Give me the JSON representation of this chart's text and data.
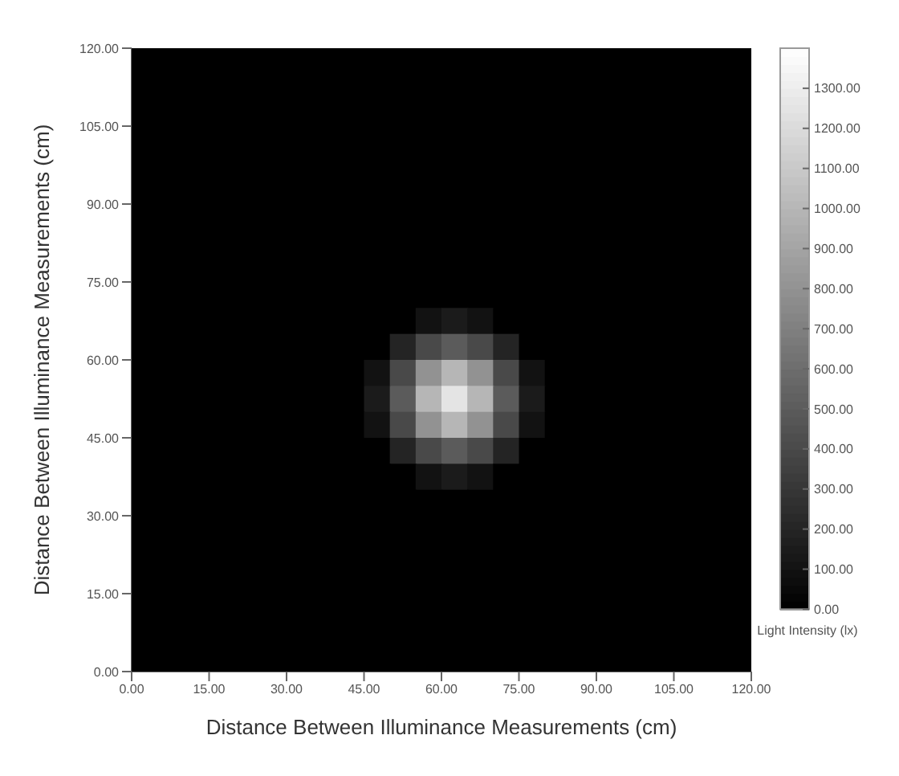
{
  "chart_data": {
    "type": "heatmap",
    "xlabel": "Distance Between Illuminance Measurements (cm)",
    "ylabel": "Distance Between Illuminance Measurements (cm)",
    "clabel": "Light Intensity (lx)",
    "xlim": [
      0,
      120
    ],
    "ylim": [
      0,
      120
    ],
    "xticks": [
      {
        "value": 0,
        "label": "0.00"
      },
      {
        "value": 15,
        "label": "15.00"
      },
      {
        "value": 30,
        "label": "30.00"
      },
      {
        "value": 45,
        "label": "45.00"
      },
      {
        "value": 60,
        "label": "60.00"
      },
      {
        "value": 75,
        "label": "75.00"
      },
      {
        "value": 90,
        "label": "90.00"
      },
      {
        "value": 105,
        "label": "105.00"
      },
      {
        "value": 120,
        "label": "120.00"
      }
    ],
    "yticks": [
      {
        "value": 0,
        "label": "0.00"
      },
      {
        "value": 15,
        "label": "15.00"
      },
      {
        "value": 30,
        "label": "30.00"
      },
      {
        "value": 45,
        "label": "45.00"
      },
      {
        "value": 60,
        "label": "60.00"
      },
      {
        "value": 75,
        "label": "75.00"
      },
      {
        "value": 90,
        "label": "90.00"
      },
      {
        "value": 105,
        "label": "105.00"
      },
      {
        "value": 120,
        "label": "120.00"
      }
    ],
    "clim": [
      0,
      1400
    ],
    "cticks": [
      {
        "value": 0,
        "label": "0.00"
      },
      {
        "value": 100,
        "label": "100.00"
      },
      {
        "value": 200,
        "label": "200.00"
      },
      {
        "value": 300,
        "label": "300.00"
      },
      {
        "value": 400,
        "label": "400.00"
      },
      {
        "value": 500,
        "label": "500.00"
      },
      {
        "value": 600,
        "label": "600.00"
      },
      {
        "value": 700,
        "label": "700.00"
      },
      {
        "value": 800,
        "label": "800.00"
      },
      {
        "value": 900,
        "label": "900.00"
      },
      {
        "value": 1000,
        "label": "1000.00"
      },
      {
        "value": 1100,
        "label": "1100.00"
      },
      {
        "value": 1200,
        "label": "1200.00"
      },
      {
        "value": 1300,
        "label": "1300.00"
      }
    ],
    "cells": [
      [
        0,
        0,
        0,
        0,
        0,
        0,
        0,
        0,
        0,
        0,
        0,
        0,
        0,
        0,
        0,
        0,
        0,
        0,
        0,
        0,
        0,
        0,
        0,
        0
      ],
      [
        0,
        0,
        0,
        0,
        0,
        0,
        0,
        0,
        0,
        0,
        0,
        0,
        0,
        0,
        0,
        0,
        0,
        0,
        0,
        0,
        0,
        0,
        0,
        0
      ],
      [
        0,
        0,
        0,
        0,
        0,
        0,
        0,
        0,
        0,
        0,
        0,
        0,
        0,
        0,
        0,
        0,
        0,
        0,
        0,
        0,
        0,
        0,
        0,
        0
      ],
      [
        0,
        0,
        0,
        0,
        0,
        0,
        0,
        0,
        0,
        0,
        0,
        0,
        0,
        0,
        0,
        0,
        0,
        0,
        0,
        0,
        0,
        0,
        0,
        0
      ],
      [
        0,
        0,
        0,
        0,
        0,
        0,
        0,
        0,
        0,
        0,
        0,
        0,
        0,
        0,
        0,
        0,
        0,
        0,
        0,
        0,
        0,
        0,
        0,
        0
      ],
      [
        0,
        0,
        0,
        0,
        0,
        0,
        0,
        0,
        0,
        0,
        0,
        0,
        0,
        0,
        0,
        0,
        0,
        0,
        0,
        0,
        0,
        0,
        0,
        0
      ],
      [
        0,
        0,
        0,
        0,
        0,
        0,
        0,
        0,
        0,
        0,
        0,
        0,
        0,
        0,
        0,
        0,
        0,
        0,
        0,
        0,
        0,
        0,
        0,
        0
      ],
      [
        0,
        0,
        0,
        0,
        0,
        0,
        0,
        0,
        0,
        0,
        0,
        0,
        0,
        0,
        0,
        0,
        0,
        0,
        0,
        0,
        0,
        0,
        0,
        0
      ],
      [
        0,
        0,
        0,
        0,
        0,
        0,
        0,
        0,
        0,
        0,
        0,
        0,
        0,
        0,
        0,
        0,
        0,
        0,
        0,
        0,
        0,
        0,
        0,
        0
      ],
      [
        0,
        0,
        0,
        0,
        0,
        0,
        0,
        0,
        0,
        0,
        0,
        0,
        0,
        0,
        0,
        0,
        0,
        0,
        0,
        0,
        0,
        0,
        0,
        0
      ],
      [
        0,
        0,
        0,
        0,
        0,
        0,
        0,
        0,
        0,
        0,
        0,
        100,
        150,
        100,
        0,
        0,
        0,
        0,
        0,
        0,
        0,
        0,
        0,
        0
      ],
      [
        0,
        0,
        0,
        0,
        0,
        0,
        0,
        0,
        0,
        0,
        200,
        400,
        500,
        400,
        200,
        0,
        0,
        0,
        0,
        0,
        0,
        0,
        0,
        0
      ],
      [
        0,
        0,
        0,
        0,
        0,
        0,
        0,
        0,
        0,
        100,
        400,
        800,
        1000,
        800,
        400,
        100,
        0,
        0,
        0,
        0,
        0,
        0,
        0,
        0
      ],
      [
        0,
        0,
        0,
        0,
        0,
        0,
        0,
        0,
        0,
        150,
        500,
        1000,
        1250,
        1000,
        500,
        150,
        0,
        0,
        0,
        0,
        0,
        0,
        0,
        0
      ],
      [
        0,
        0,
        0,
        0,
        0,
        0,
        0,
        0,
        0,
        100,
        400,
        800,
        1000,
        800,
        400,
        100,
        0,
        0,
        0,
        0,
        0,
        0,
        0,
        0
      ],
      [
        0,
        0,
        0,
        0,
        0,
        0,
        0,
        0,
        0,
        0,
        200,
        400,
        500,
        400,
        200,
        0,
        0,
        0,
        0,
        0,
        0,
        0,
        0,
        0
      ],
      [
        0,
        0,
        0,
        0,
        0,
        0,
        0,
        0,
        0,
        0,
        0,
        100,
        150,
        100,
        0,
        0,
        0,
        0,
        0,
        0,
        0,
        0,
        0,
        0
      ],
      [
        0,
        0,
        0,
        0,
        0,
        0,
        0,
        0,
        0,
        0,
        0,
        0,
        0,
        0,
        0,
        0,
        0,
        0,
        0,
        0,
        0,
        0,
        0,
        0
      ],
      [
        0,
        0,
        0,
        0,
        0,
        0,
        0,
        0,
        0,
        0,
        0,
        0,
        0,
        0,
        0,
        0,
        0,
        0,
        0,
        0,
        0,
        0,
        0,
        0
      ],
      [
        0,
        0,
        0,
        0,
        0,
        0,
        0,
        0,
        0,
        0,
        0,
        0,
        0,
        0,
        0,
        0,
        0,
        0,
        0,
        0,
        0,
        0,
        0,
        0
      ],
      [
        0,
        0,
        0,
        0,
        0,
        0,
        0,
        0,
        0,
        0,
        0,
        0,
        0,
        0,
        0,
        0,
        0,
        0,
        0,
        0,
        0,
        0,
        0,
        0
      ],
      [
        0,
        0,
        0,
        0,
        0,
        0,
        0,
        0,
        0,
        0,
        0,
        0,
        0,
        0,
        0,
        0,
        0,
        0,
        0,
        0,
        0,
        0,
        0,
        0
      ],
      [
        0,
        0,
        0,
        0,
        0,
        0,
        0,
        0,
        0,
        0,
        0,
        0,
        0,
        0,
        0,
        0,
        0,
        0,
        0,
        0,
        0,
        0,
        0,
        0
      ],
      [
        0,
        0,
        0,
        0,
        0,
        0,
        0,
        0,
        0,
        0,
        0,
        0,
        0,
        0,
        0,
        0,
        0,
        0,
        0,
        0,
        0,
        0,
        0,
        0
      ]
    ]
  }
}
